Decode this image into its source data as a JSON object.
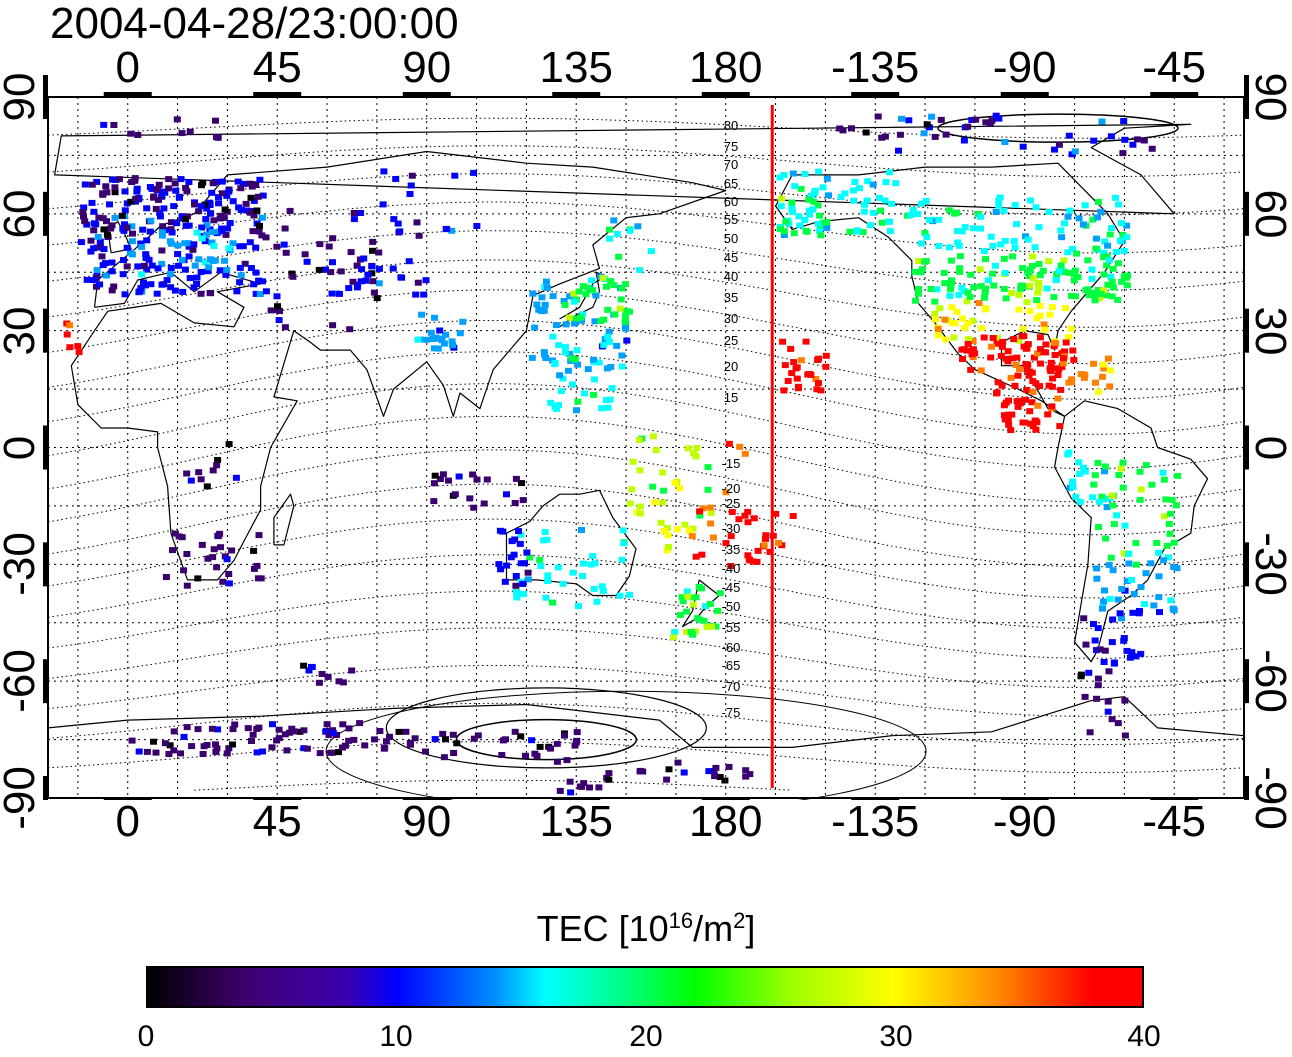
{
  "title": "2004-04-28/23:00:00",
  "x_ticks": [
    "0",
    "45",
    "90",
    "135",
    "180",
    "-135",
    "-90",
    "-45"
  ],
  "y_ticks_left": [
    "90",
    "60",
    "30",
    "0",
    "-30",
    "-60",
    "-90"
  ],
  "y_ticks_right": [
    "90",
    "60",
    "30",
    "0",
    "-30",
    "-60",
    "-90"
  ],
  "contour_labels": [
    "80",
    "75",
    "70",
    "65",
    "60",
    "55",
    "50",
    "45",
    "40",
    "35",
    "30",
    "25",
    "20",
    "15",
    "-15",
    "-20",
    "-25",
    "-30",
    "-35",
    "-40",
    "-45",
    "-50",
    "-55",
    "-60",
    "-65",
    "-70",
    "-75"
  ],
  "colorbar": {
    "title_main": "TEC  [10",
    "title_exp1": "16",
    "title_mid": "/m",
    "title_exp2": "2",
    "title_end": "]",
    "ticks": [
      "0",
      "10",
      "20",
      "30",
      "40"
    ],
    "min": 0,
    "max": 40
  },
  "terminator_color": "#ff0000",
  "map_data": {
    "type": "map",
    "projection": "equirectangular",
    "lon_range": [
      -24,
      336
    ],
    "lat_range": [
      -90,
      90
    ],
    "terminator_longitude": 194,
    "variable": "TEC",
    "colors": [
      "#000000",
      "#3a0070",
      "#0000ff",
      "#00a0ff",
      "#00ffff",
      "#00ff40",
      "#c0ff00",
      "#ffff00",
      "#ff8000",
      "#ff0000"
    ]
  }
}
